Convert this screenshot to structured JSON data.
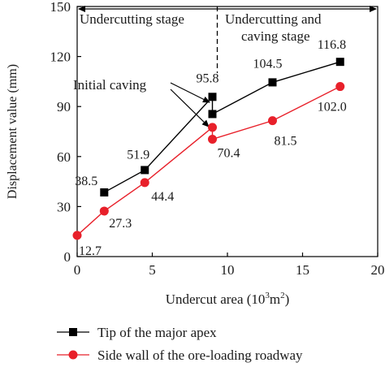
{
  "chart_data": {
    "type": "line",
    "xlabel": "Undercut area (10",
    "xlabel_sup": "3",
    "xlabel_unit": "m",
    "xlabel_sup2": "2",
    "xlabel_close": ")",
    "ylabel": "Displacement value (mm)",
    "xlim": [
      0,
      20
    ],
    "ylim": [
      0,
      150
    ],
    "xticks": [
      0,
      5,
      10,
      15,
      20
    ],
    "yticks": [
      0,
      30,
      60,
      90,
      120,
      150
    ],
    "grid": false,
    "legend_position": "bottom",
    "series": [
      {
        "name": "Tip of the major apex",
        "color": "#000000",
        "marker": "square",
        "x": [
          1.8,
          4.5,
          9.0,
          9.0,
          13.0,
          17.5
        ],
        "y": [
          38.5,
          51.9,
          95.8,
          85.5,
          104.5,
          116.8
        ],
        "labels": [
          "38.5",
          "51.9",
          "95.8",
          "",
          "104.5",
          "116.8"
        ]
      },
      {
        "name": "Side wall of the ore-loading roadway",
        "color": "#e8202a",
        "marker": "circle",
        "x": [
          0,
          1.8,
          4.5,
          9.0,
          9.0,
          13.0,
          17.5
        ],
        "y": [
          12.7,
          27.3,
          44.4,
          77.5,
          70.4,
          81.5,
          102.0
        ],
        "labels": [
          "12.7",
          "27.3",
          "44.4",
          "",
          "70.4",
          "81.5",
          "102.0"
        ]
      }
    ],
    "annotations": {
      "stage_left": "Undercutting stage",
      "stage_right_line1": "Undercutting and",
      "stage_right_line2": "caving stage",
      "initial_caving": "Initial caving",
      "divider_x": 9.0
    }
  }
}
